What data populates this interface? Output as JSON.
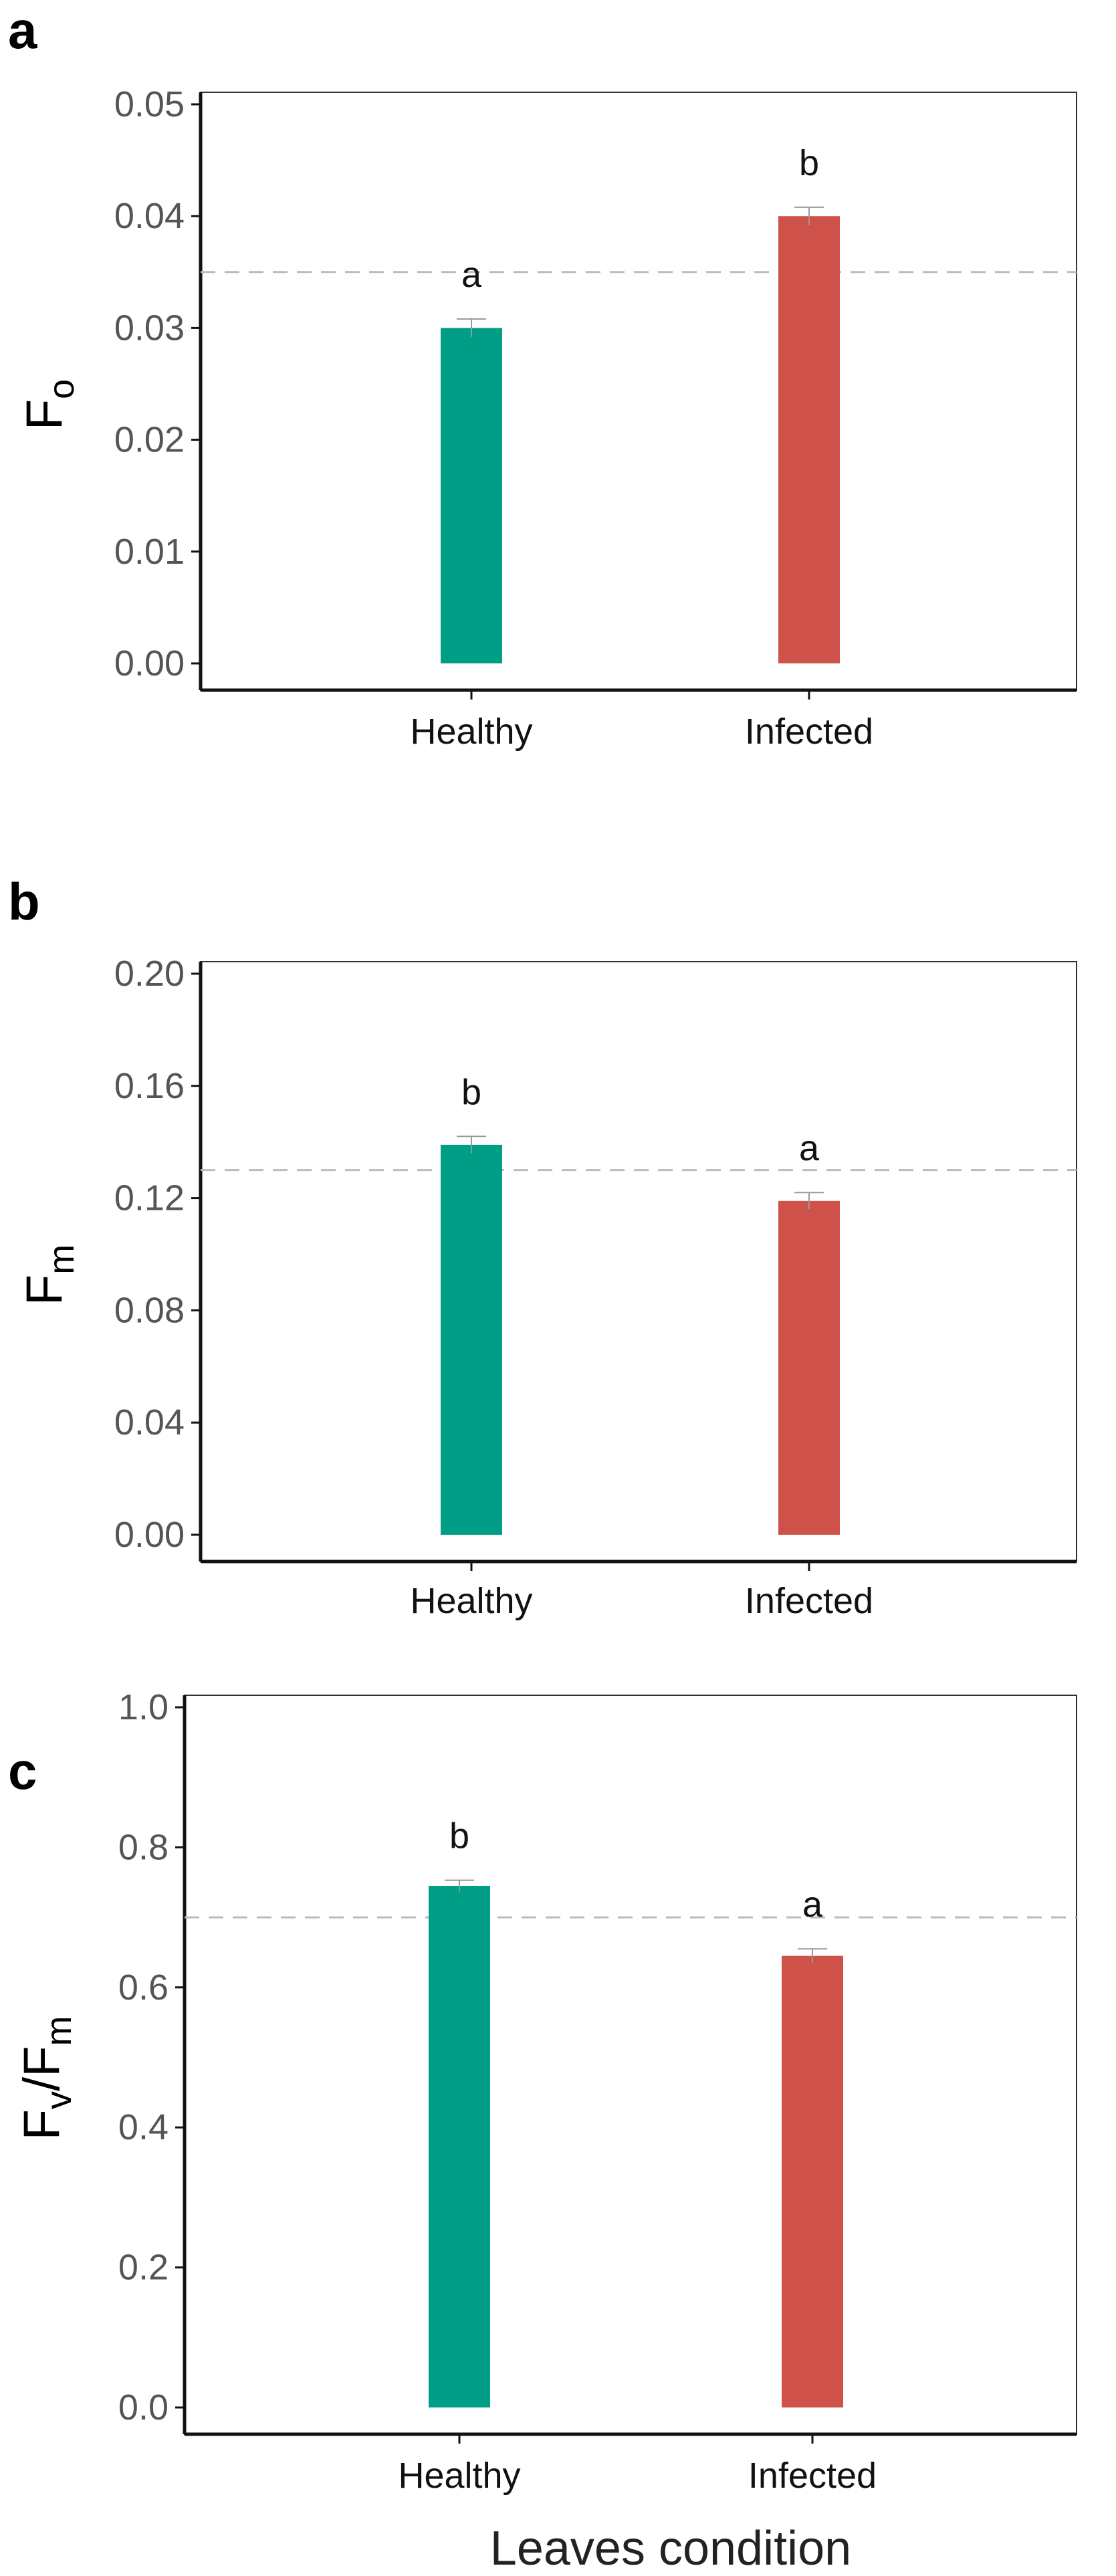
{
  "chart_data": [
    {
      "panel": "a",
      "type": "bar",
      "categories": [
        "Healthy",
        "Infected"
      ],
      "values": [
        0.03,
        0.04
      ],
      "errors": [
        0.0008,
        0.0008
      ],
      "significance": [
        "a",
        "b"
      ],
      "colors": [
        "#009E86",
        "#CF524A"
      ],
      "ylabel_main": "F",
      "ylabel_sub": "o",
      "ylim": [
        0,
        0.05
      ],
      "yticks": [
        "0.00",
        "0.01",
        "0.02",
        "0.03",
        "0.04",
        "0.05"
      ],
      "ytick_values": [
        0,
        0.01,
        0.02,
        0.03,
        0.04,
        0.05
      ],
      "reference_line": 0.035,
      "grid": false
    },
    {
      "panel": "b",
      "type": "bar",
      "categories": [
        "Healthy",
        "Infected"
      ],
      "values": [
        0.139,
        0.119
      ],
      "errors": [
        0.003,
        0.003
      ],
      "significance": [
        "b",
        "a"
      ],
      "colors": [
        "#009E86",
        "#CF524A"
      ],
      "ylabel_main": "F",
      "ylabel_sub": "m",
      "ylim": [
        0,
        0.2
      ],
      "yticks": [
        "0.00",
        "0.04",
        "0.08",
        "0.12",
        "0.16",
        "0.20"
      ],
      "ytick_values": [
        0,
        0.04,
        0.08,
        0.12,
        0.16,
        0.2
      ],
      "reference_line": 0.13,
      "grid": false
    },
    {
      "panel": "c",
      "type": "bar",
      "categories": [
        "Healthy",
        "Infected"
      ],
      "values": [
        0.745,
        0.645
      ],
      "errors": [
        0.008,
        0.01
      ],
      "significance": [
        "b",
        "a"
      ],
      "colors": [
        "#009E86",
        "#CF524A"
      ],
      "ylabel_main": "F",
      "ylabel_sub": "v",
      "ylabel_main2": "/F",
      "ylabel_sub2": "m",
      "ylim": [
        0,
        1.0
      ],
      "yticks": [
        "0.0",
        "0.2",
        "0.4",
        "0.6",
        "0.8",
        "1.0"
      ],
      "ytick_values": [
        0,
        0.2,
        0.4,
        0.6,
        0.8,
        1.0
      ],
      "reference_line": 0.7,
      "grid": false
    }
  ],
  "xlabel": "Leaves condition",
  "style": {
    "frame_color": "#333333",
    "axis_color": "#111111",
    "reference_line_color": "#bbbbbb",
    "error_bar_color": "#999999"
  }
}
